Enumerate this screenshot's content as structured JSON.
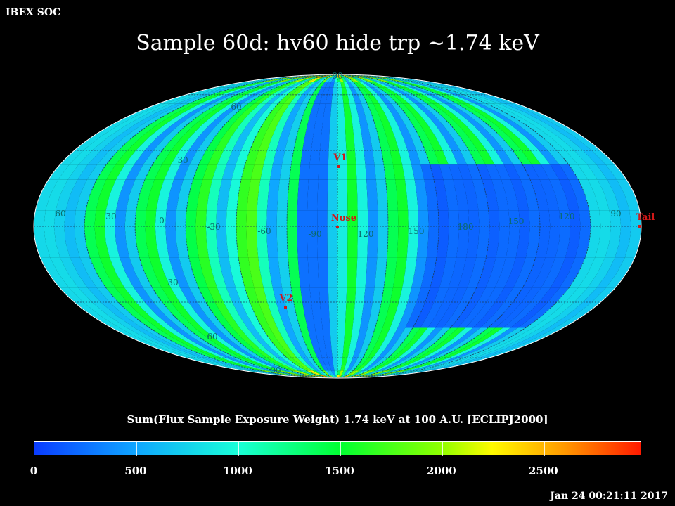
{
  "corner_label": "IBEX SOC",
  "title": "Sample 60d: hv60 hide trp ~1.74 keV",
  "scale_title": "Sum(Flux Sample Exposure Weight)  1.74 keV at 100 A.U. [ECLIPJ2000]",
  "timestamp": "Jan 24 00:21:11 2017",
  "colorbar": {
    "ticks": [
      "0",
      "500",
      "1000",
      "1500",
      "2000",
      "2500"
    ],
    "tick_values": [
      0,
      500,
      1000,
      1500,
      2000,
      2500
    ],
    "max": 2980,
    "stops": [
      {
        "v": 0,
        "color": "#0a3cff"
      },
      {
        "v": 500,
        "color": "#0fa6ff"
      },
      {
        "v": 1000,
        "color": "#19ffd8"
      },
      {
        "v": 1500,
        "color": "#00ff32"
      },
      {
        "v": 2000,
        "color": "#8fff00"
      },
      {
        "v": 2250,
        "color": "#fffa00"
      },
      {
        "v": 2600,
        "color": "#ff9a00"
      },
      {
        "v": 2980,
        "color": "#ff1a00"
      }
    ]
  },
  "grid_labels": {
    "latitude": [
      "90",
      "60",
      "30",
      "30",
      "60",
      "90"
    ],
    "longitude": [
      "60",
      "30",
      "0",
      "-30",
      "-60",
      "-90",
      "120",
      "150",
      "180",
      "150",
      "120",
      "90"
    ]
  },
  "markers": [
    {
      "name": "V1",
      "color": "#d01818"
    },
    {
      "name": "Nose",
      "color": "#d01818"
    },
    {
      "name": "V2",
      "color": "#d01818"
    },
    {
      "name": "Tail",
      "color": "#d01818"
    }
  ]
}
